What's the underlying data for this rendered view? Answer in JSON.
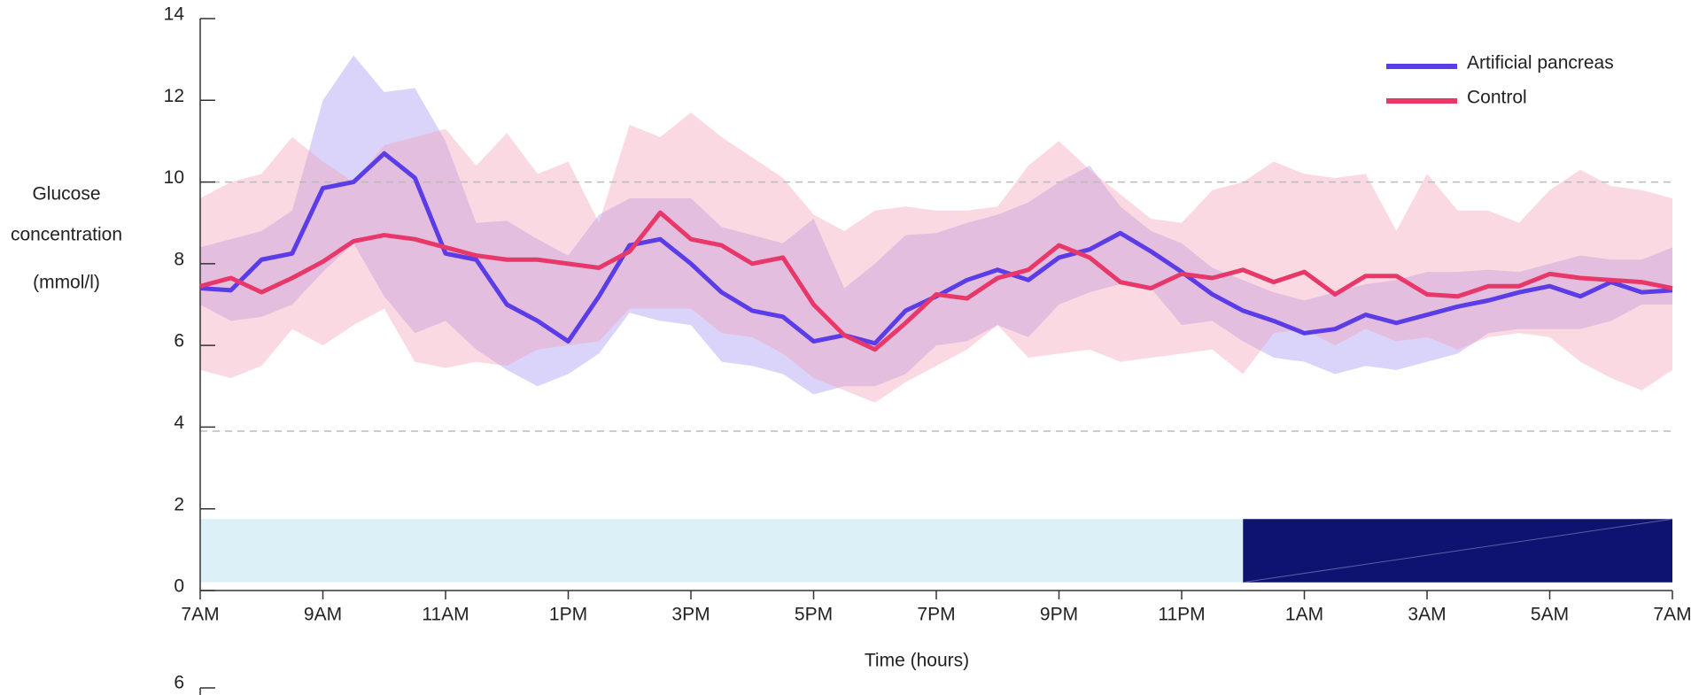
{
  "chart_data": [
    {
      "type": "line",
      "ylabel": [
        "Glucose",
        "concentration",
        "(mmol/l)"
      ],
      "xlabel": "Time (hours)",
      "x": [
        0,
        0.5,
        1,
        1.5,
        2,
        2.5,
        3,
        3.5,
        4,
        4.5,
        5,
        5.5,
        6,
        6.5,
        7,
        7.5,
        8,
        8.5,
        9,
        9.5,
        10,
        10.5,
        11,
        11.5,
        12,
        12.5,
        13,
        13.5,
        14,
        14.5,
        15,
        15.5,
        16,
        16.5,
        17,
        17.5,
        18,
        18.5,
        19,
        19.5,
        20,
        20.5,
        21,
        21.5,
        22,
        22.5,
        23,
        23.5,
        24
      ],
      "xlim": [
        0,
        24
      ],
      "xticks": [
        {
          "value": 0,
          "label": "7AM"
        },
        {
          "value": 2,
          "label": "9AM"
        },
        {
          "value": 4,
          "label": "11AM"
        },
        {
          "value": 6,
          "label": "1PM"
        },
        {
          "value": 8,
          "label": "3PM"
        },
        {
          "value": 10,
          "label": "5PM"
        },
        {
          "value": 12,
          "label": "7PM"
        },
        {
          "value": 14,
          "label": "9PM"
        },
        {
          "value": 16,
          "label": "11PM"
        },
        {
          "value": 18,
          "label": "1AM"
        },
        {
          "value": 20,
          "label": "3AM"
        },
        {
          "value": 22,
          "label": "5AM"
        },
        {
          "value": 24,
          "label": "7AM"
        }
      ],
      "ylim": [
        0,
        14
      ],
      "yticks": [
        0,
        2,
        4,
        6,
        8,
        10,
        12,
        14
      ],
      "reference_lines": [
        3.9,
        10
      ],
      "periods": [
        {
          "start": 0,
          "end": 17,
          "color": "#dcf0f8"
        },
        {
          "start": 17,
          "end": 24,
          "color": "#0e1270"
        }
      ],
      "period_range": [
        0.2,
        1.75
      ],
      "legend": "upper right",
      "series": [
        {
          "name": "Artificial pancreas",
          "color": "#5b3de8",
          "band_color": "#7d66ee",
          "values": [
            7.4,
            7.35,
            8.1,
            8.25,
            9.85,
            10.0,
            10.7,
            10.1,
            8.25,
            8.1,
            7.0,
            6.6,
            6.1,
            7.2,
            8.45,
            8.6,
            8.0,
            7.3,
            6.85,
            6.7,
            6.1,
            6.25,
            6.05,
            6.85,
            7.2,
            7.6,
            7.85,
            7.6,
            8.15,
            8.35,
            8.75,
            8.3,
            7.8,
            7.25,
            6.85,
            6.6,
            6.3,
            6.4,
            6.75,
            6.55,
            6.75,
            6.95,
            7.1,
            7.3,
            7.45,
            7.2,
            7.55,
            7.3,
            7.35
          ],
          "upper": [
            8.4,
            8.6,
            8.8,
            9.3,
            12.0,
            13.1,
            12.2,
            12.3,
            11.0,
            9.0,
            9.05,
            8.6,
            8.2,
            9.2,
            9.6,
            9.6,
            9.6,
            8.9,
            8.7,
            8.5,
            9.1,
            7.4,
            8.0,
            8.7,
            8.75,
            9.0,
            9.2,
            9.5,
            10.0,
            10.4,
            9.4,
            8.8,
            8.5,
            7.9,
            7.6,
            7.3,
            7.1,
            7.3,
            7.5,
            7.6,
            7.8,
            7.8,
            7.85,
            7.8,
            8.0,
            8.2,
            8.1,
            8.1,
            8.4
          ],
          "lower": [
            7.0,
            6.6,
            6.7,
            7.0,
            7.8,
            8.5,
            7.2,
            6.3,
            6.6,
            5.9,
            5.4,
            5.0,
            5.3,
            5.8,
            6.8,
            6.6,
            6.5,
            5.6,
            5.5,
            5.3,
            4.8,
            5.0,
            5.0,
            5.3,
            6.0,
            6.1,
            6.5,
            6.2,
            7.0,
            7.3,
            7.5,
            7.4,
            6.5,
            6.6,
            6.1,
            5.7,
            5.6,
            5.3,
            5.5,
            5.4,
            5.6,
            5.8,
            6.3,
            6.4,
            6.4,
            6.4,
            6.6,
            7.0,
            7.0
          ]
        },
        {
          "name": "Control",
          "color": "#e8386a",
          "band_color": "#f29bb3",
          "values": [
            7.45,
            7.65,
            7.3,
            7.65,
            8.05,
            8.55,
            8.7,
            8.6,
            8.4,
            8.2,
            8.1,
            8.1,
            8.0,
            7.9,
            8.3,
            9.25,
            8.6,
            8.45,
            8.0,
            8.15,
            7.0,
            6.25,
            5.9,
            6.55,
            7.25,
            7.15,
            7.65,
            7.85,
            8.45,
            8.15,
            7.55,
            7.4,
            7.75,
            7.65,
            7.85,
            7.55,
            7.8,
            7.25,
            7.7,
            7.7,
            7.25,
            7.2,
            7.45,
            7.45,
            7.75,
            7.65,
            7.6,
            7.55,
            7.4
          ],
          "upper": [
            9.6,
            10.0,
            10.2,
            11.1,
            10.5,
            10.0,
            10.9,
            11.1,
            11.3,
            10.4,
            11.2,
            10.2,
            10.5,
            9.0,
            11.4,
            11.1,
            11.7,
            11.1,
            10.6,
            10.1,
            9.2,
            8.8,
            9.3,
            9.4,
            9.3,
            9.3,
            9.4,
            10.4,
            11.0,
            10.3,
            9.7,
            9.1,
            9.0,
            9.8,
            10.0,
            10.5,
            10.2,
            10.1,
            10.2,
            8.8,
            10.2,
            9.3,
            9.3,
            9.0,
            9.8,
            10.3,
            9.9,
            9.8,
            9.6
          ],
          "lower": [
            5.4,
            5.2,
            5.5,
            6.4,
            6.0,
            6.5,
            6.9,
            5.6,
            5.45,
            5.6,
            5.5,
            5.9,
            6.0,
            6.1,
            6.9,
            6.9,
            6.9,
            6.3,
            6.2,
            5.8,
            5.2,
            4.9,
            4.6,
            5.1,
            5.5,
            5.9,
            6.5,
            5.7,
            5.8,
            5.9,
            5.6,
            5.7,
            5.8,
            5.9,
            5.3,
            6.3,
            6.4,
            6.0,
            6.4,
            6.1,
            6.2,
            5.9,
            6.2,
            6.3,
            6.2,
            5.6,
            5.2,
            4.9,
            5.4
          ]
        }
      ]
    },
    {
      "type": "axis-fragment",
      "yticks": [
        6
      ]
    }
  ]
}
